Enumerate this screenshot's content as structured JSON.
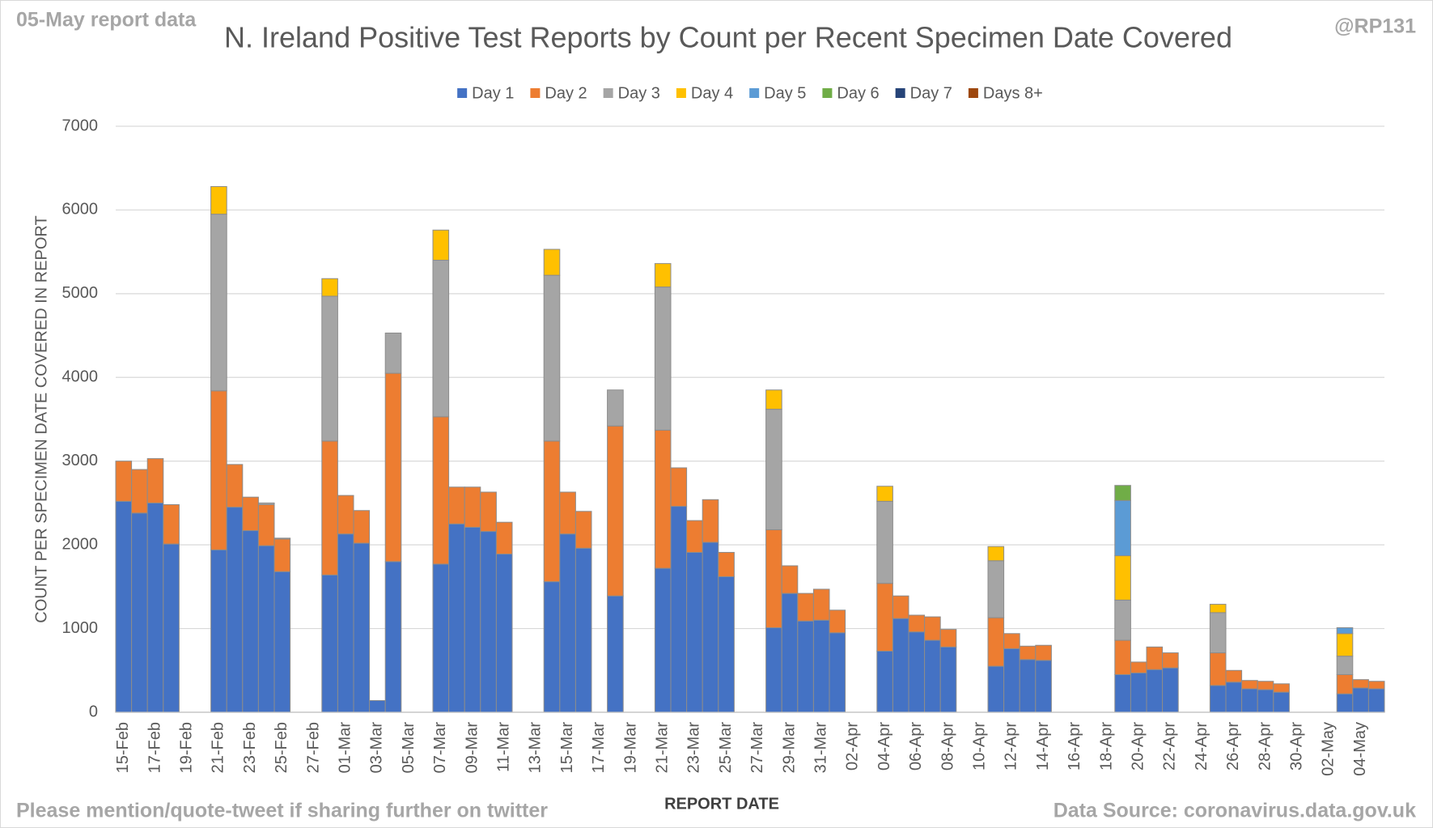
{
  "chart_data": {
    "type": "stacked_bar",
    "title": "N. Ireland Positive Test Reports by Count per Recent Specimen Date Covered",
    "top_left_note": "05-May report data",
    "top_right_note": "@RP131",
    "footer_left": "Please mention/quote-tweet if sharing further on twitter",
    "footer_right": "Data Source: coronavirus.data.gov.uk",
    "x_label": "REPORT DATE",
    "y_label": "COUNT PER SPECIMEN DATE COVERED IN REPORT",
    "ylim": [
      0,
      7000
    ],
    "yticks": [
      0,
      1000,
      2000,
      3000,
      4000,
      5000,
      6000,
      7000
    ],
    "grid": true,
    "legend": "top",
    "categories": [
      "15-Feb",
      null,
      "17-Feb",
      null,
      "19-Feb",
      null,
      "21-Feb",
      null,
      "23-Feb",
      null,
      "25-Feb",
      null,
      "27-Feb",
      null,
      "01-Mar",
      null,
      "03-Mar",
      null,
      "05-Mar",
      null,
      "07-Mar",
      null,
      "09-Mar",
      null,
      "11-Mar",
      null,
      "13-Mar",
      null,
      "15-Mar",
      null,
      "17-Mar",
      null,
      "19-Mar",
      null,
      "21-Mar",
      null,
      "23-Mar",
      null,
      "25-Mar",
      null,
      "27-Mar",
      null,
      "29-Mar",
      null,
      "31-Mar",
      null,
      "02-Apr",
      null,
      "04-Apr",
      null,
      "06-Apr",
      null,
      "08-Apr",
      null,
      "10-Apr",
      null,
      "12-Apr",
      null,
      "14-Apr",
      null,
      "16-Apr",
      null,
      "18-Apr",
      null,
      "20-Apr",
      null,
      "22-Apr",
      null,
      "24-Apr",
      null,
      "26-Apr",
      null,
      "28-Apr",
      null,
      "30-Apr",
      null,
      "02-May",
      null,
      "04-May",
      null
    ],
    "series": [
      {
        "name": "Day 1",
        "color": "#4472c4",
        "values": [
          2520,
          2380,
          2500,
          2010,
          0,
          0,
          1940,
          2450,
          2170,
          1990,
          1680,
          0,
          0,
          1640,
          2130,
          2020,
          140,
          1800,
          0,
          0,
          1770,
          2250,
          2210,
          2160,
          1890,
          0,
          0,
          1560,
          2130,
          1960,
          0,
          1390,
          0,
          0,
          1720,
          2460,
          1910,
          2030,
          1620,
          0,
          0,
          1010,
          1420,
          1090,
          1100,
          950,
          0,
          0,
          730,
          1120,
          960,
          860,
          780,
          0,
          0,
          550,
          760,
          630,
          620,
          0,
          0,
          0,
          0,
          450,
          470,
          510,
          530,
          0,
          0,
          320,
          360,
          280,
          270,
          240,
          0,
          0,
          0,
          220,
          290,
          280
        ]
      },
      {
        "name": "Day 2",
        "color": "#ed7d31",
        "values": [
          480,
          520,
          530,
          470,
          0,
          0,
          1900,
          510,
          400,
          490,
          390,
          0,
          0,
          1600,
          460,
          390,
          0,
          2250,
          0,
          0,
          1760,
          440,
          480,
          470,
          380,
          0,
          0,
          1680,
          500,
          440,
          0,
          2030,
          0,
          0,
          1650,
          460,
          380,
          510,
          290,
          0,
          0,
          1170,
          330,
          330,
          370,
          270,
          0,
          0,
          810,
          270,
          200,
          280,
          210,
          0,
          0,
          580,
          180,
          160,
          180,
          0,
          0,
          0,
          0,
          410,
          130,
          270,
          180,
          0,
          0,
          390,
          140,
          100,
          100,
          100,
          0,
          0,
          0,
          230,
          100,
          90
        ]
      },
      {
        "name": "Day 3",
        "color": "#a5a5a5",
        "values": [
          0,
          0,
          0,
          0,
          0,
          0,
          2110,
          0,
          0,
          20,
          10,
          0,
          0,
          1730,
          0,
          0,
          0,
          480,
          0,
          0,
          1870,
          0,
          0,
          0,
          0,
          0,
          0,
          1980,
          0,
          0,
          0,
          430,
          0,
          0,
          1710,
          0,
          0,
          0,
          0,
          0,
          0,
          1440,
          0,
          0,
          0,
          0,
          0,
          0,
          980,
          0,
          0,
          0,
          0,
          0,
          0,
          680,
          0,
          0,
          0,
          0,
          0,
          0,
          0,
          480,
          0,
          0,
          0,
          0,
          0,
          480,
          0,
          0,
          0,
          0,
          0,
          0,
          0,
          220,
          0,
          0
        ]
      },
      {
        "name": "Day 4",
        "color": "#ffc000",
        "values": [
          0,
          0,
          0,
          0,
          0,
          0,
          330,
          0,
          0,
          0,
          0,
          0,
          0,
          210,
          0,
          0,
          0,
          0,
          0,
          0,
          360,
          0,
          0,
          0,
          0,
          0,
          0,
          310,
          0,
          0,
          0,
          0,
          0,
          0,
          280,
          0,
          0,
          0,
          0,
          0,
          0,
          230,
          0,
          0,
          0,
          0,
          0,
          0,
          180,
          0,
          0,
          0,
          0,
          0,
          0,
          170,
          0,
          0,
          0,
          0,
          0,
          0,
          0,
          530,
          0,
          0,
          0,
          0,
          0,
          100,
          0,
          0,
          0,
          0,
          0,
          0,
          0,
          270,
          0,
          0
        ]
      },
      {
        "name": "Day 5",
        "color": "#5b9bd5",
        "values": [
          0,
          0,
          0,
          0,
          0,
          0,
          0,
          0,
          0,
          0,
          0,
          0,
          0,
          0,
          0,
          0,
          0,
          0,
          0,
          0,
          0,
          0,
          0,
          0,
          0,
          0,
          0,
          0,
          0,
          0,
          0,
          0,
          0,
          0,
          0,
          0,
          0,
          0,
          0,
          0,
          0,
          0,
          0,
          0,
          0,
          0,
          0,
          0,
          0,
          0,
          0,
          0,
          0,
          0,
          0,
          0,
          0,
          0,
          0,
          0,
          0,
          0,
          0,
          660,
          0,
          0,
          0,
          0,
          0,
          0,
          0,
          0,
          0,
          0,
          0,
          0,
          0,
          70,
          0,
          0
        ]
      },
      {
        "name": "Day 6",
        "color": "#70ad47",
        "values": [
          0,
          0,
          0,
          0,
          0,
          0,
          0,
          0,
          0,
          0,
          0,
          0,
          0,
          0,
          0,
          0,
          0,
          0,
          0,
          0,
          0,
          0,
          0,
          0,
          0,
          0,
          0,
          0,
          0,
          0,
          0,
          0,
          0,
          0,
          0,
          0,
          0,
          0,
          0,
          0,
          0,
          0,
          0,
          0,
          0,
          0,
          0,
          0,
          0,
          0,
          0,
          0,
          0,
          0,
          0,
          0,
          0,
          0,
          0,
          0,
          0,
          0,
          0,
          180,
          0,
          0,
          0,
          0,
          0,
          0,
          0,
          0,
          0,
          0,
          0,
          0,
          0,
          0,
          0,
          0
        ]
      },
      {
        "name": "Day 7",
        "color": "#264478",
        "values": [
          0,
          0,
          0,
          0,
          0,
          0,
          0,
          0,
          0,
          0,
          0,
          0,
          0,
          0,
          0,
          0,
          0,
          0,
          0,
          0,
          0,
          0,
          0,
          0,
          0,
          0,
          0,
          0,
          0,
          0,
          0,
          0,
          0,
          0,
          0,
          0,
          0,
          0,
          0,
          0,
          0,
          0,
          0,
          0,
          0,
          0,
          0,
          0,
          0,
          0,
          0,
          0,
          0,
          0,
          0,
          0,
          0,
          0,
          0,
          0,
          0,
          0,
          0,
          0,
          0,
          0,
          0,
          0,
          0,
          0,
          0,
          0,
          0,
          0,
          0,
          0,
          0,
          0,
          0,
          0
        ]
      },
      {
        "name": "Days 8+",
        "color": "#9e480e",
        "values": [
          0,
          0,
          0,
          0,
          0,
          0,
          0,
          0,
          0,
          0,
          0,
          0,
          0,
          0,
          0,
          0,
          0,
          0,
          0,
          0,
          0,
          0,
          0,
          0,
          0,
          0,
          0,
          0,
          0,
          0,
          0,
          0,
          0,
          0,
          0,
          0,
          0,
          0,
          0,
          0,
          0,
          0,
          0,
          0,
          0,
          0,
          0,
          0,
          0,
          0,
          0,
          0,
          0,
          0,
          0,
          0,
          0,
          0,
          0,
          0,
          0,
          0,
          0,
          0,
          0,
          0,
          0,
          0,
          0,
          0,
          0,
          0,
          0,
          0,
          0,
          0,
          0,
          0,
          0,
          0
        ]
      }
    ]
  }
}
